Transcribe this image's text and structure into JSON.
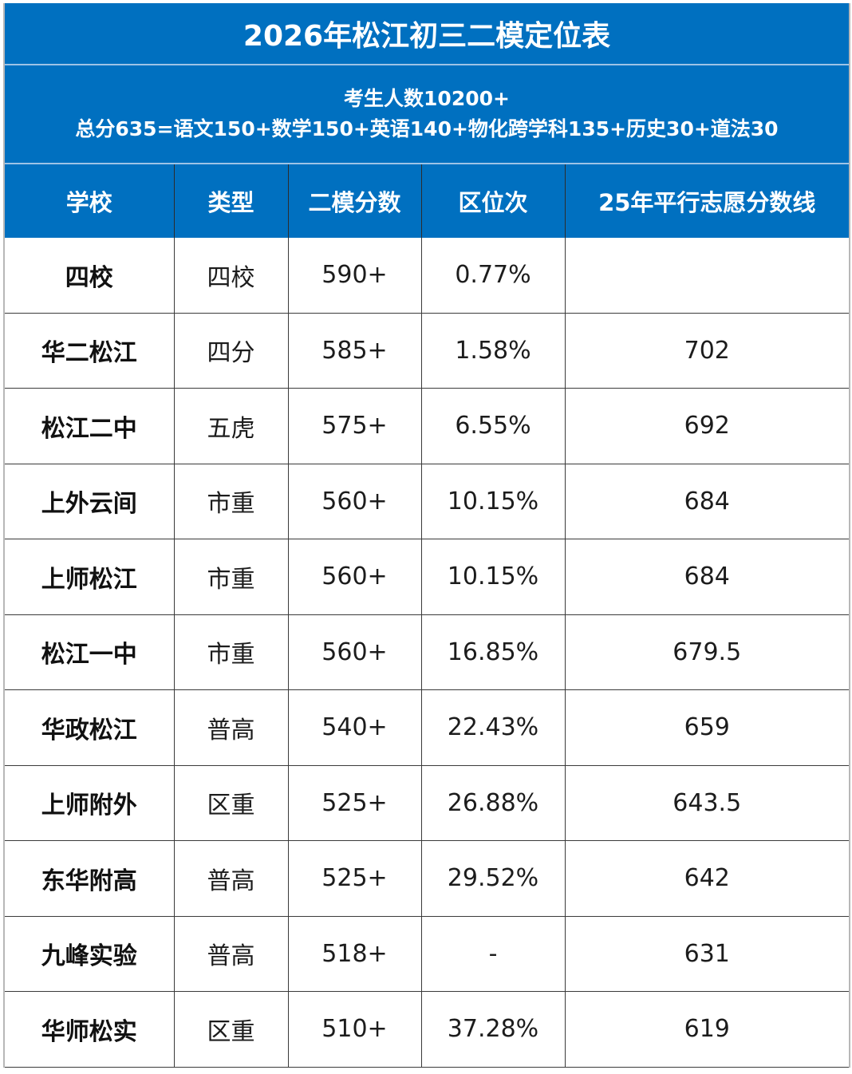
{
  "title": "2026年松江初三二模定位表",
  "subtitle": {
    "line1": "考生人数10200+",
    "line2": "总分635=语文150+数学150+英语140+物化跨学科135+历史30+道法30"
  },
  "colors": {
    "header_blue": "#0070c0",
    "header_text": "#ffffff"
  },
  "table": {
    "headers": [
      "学校",
      "类型",
      "二模分数",
      "区位次",
      "25年平行志愿分数线"
    ],
    "rows": [
      {
        "school": "四校",
        "type": "四校",
        "score": "590+",
        "rank": "0.77%",
        "cutoff": ""
      },
      {
        "school": "华二松江",
        "type": "四分",
        "score": "585+",
        "rank": "1.58%",
        "cutoff": "702"
      },
      {
        "school": "松江二中",
        "type": "五虎",
        "score": "575+",
        "rank": "6.55%",
        "cutoff": "692"
      },
      {
        "school": "上外云间",
        "type": "市重",
        "score": "560+",
        "rank": "10.15%",
        "cutoff": "684"
      },
      {
        "school": "上师松江",
        "type": "市重",
        "score": "560+",
        "rank": "10.15%",
        "cutoff": "684"
      },
      {
        "school": "松江一中",
        "type": "市重",
        "score": "560+",
        "rank": "16.85%",
        "cutoff": "679.5"
      },
      {
        "school": "华政松江",
        "type": "普高",
        "score": "540+",
        "rank": "22.43%",
        "cutoff": "659"
      },
      {
        "school": "上师附外",
        "type": "区重",
        "score": "525+",
        "rank": "26.88%",
        "cutoff": "643.5"
      },
      {
        "school": "东华附高",
        "type": "普高",
        "score": "525+",
        "rank": "29.52%",
        "cutoff": "642"
      },
      {
        "school": "九峰实验",
        "type": "普高",
        "score": "518+",
        "rank": "-",
        "cutoff": "631"
      },
      {
        "school": "华师松实",
        "type": "区重",
        "score": "510+",
        "rank": "37.28%",
        "cutoff": "619"
      }
    ]
  }
}
